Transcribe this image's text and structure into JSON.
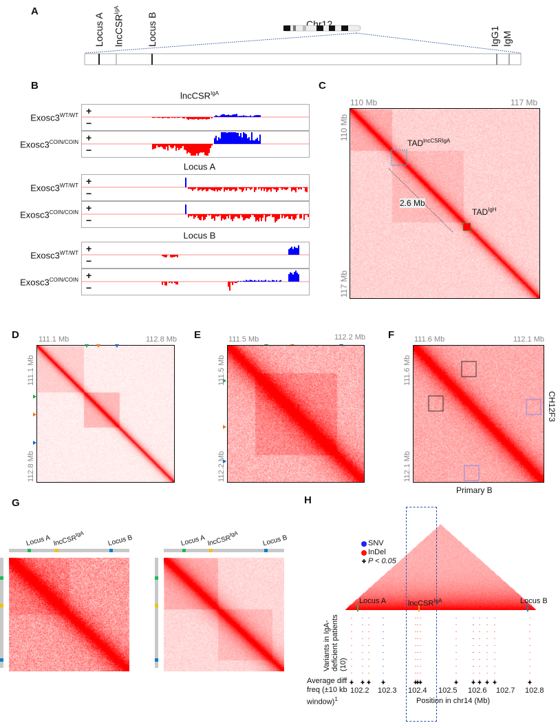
{
  "panels": {
    "A": "A",
    "B": "B",
    "C": "C",
    "D": "D",
    "E": "E",
    "F": "F",
    "G": "G",
    "H": "H"
  },
  "panel_a": {
    "chromosome": "Chr12",
    "loci": [
      {
        "name": "Locus A"
      },
      {
        "name": "lncCSR",
        "sup": "IgA"
      },
      {
        "name": "Locus B"
      },
      {
        "name": "IgG1"
      },
      {
        "name": "IgM"
      }
    ]
  },
  "panel_b": {
    "plus": "+",
    "minus": "−",
    "groups": [
      {
        "title": "lncCSR",
        "title_sup": "IgA"
      },
      {
        "title": "Locus A",
        "title_sup": ""
      },
      {
        "title": "Locus B",
        "title_sup": ""
      }
    ],
    "rows": [
      {
        "label": "Exosc3",
        "sup": "WT/WT"
      },
      {
        "label": "Exosc3",
        "sup": "COIN/COIN"
      }
    ],
    "colors": {
      "plus": "#0000ff",
      "minus": "#ff0000"
    }
  },
  "panel_c": {
    "x_start": "110 Mb",
    "x_end": "117 Mb",
    "y_start": "110 Mb",
    "y_end": "117 Mb",
    "tad1": "TAD",
    "tad1_sup": "lncCSRIgA",
    "tad2": "TAD",
    "tad2_sup": "IgH",
    "distance": "2.6 Mb"
  },
  "panel_d": {
    "x_start": "111.1 Mb",
    "x_end": "112.8 Mb",
    "y_start": "111.1 Mb",
    "y_end": "112.8 Mb"
  },
  "panel_e": {
    "x_start": "111.5 Mb",
    "x_end": "112.2 Mb",
    "y_start": "111.5 Mb",
    "y_end": "112.2 Mb"
  },
  "panel_f": {
    "x_start": "111.6 Mb",
    "x_end": "112.1 Mb",
    "y_start": "111.6 Mb",
    "y_end": "112.1 Mb",
    "bottom_label": "Primary B",
    "right_label": "CH12F3"
  },
  "panel_g": {
    "labels": [
      {
        "name": "Locus A"
      },
      {
        "name": "lncCSR",
        "sup": "IgA"
      },
      {
        "name": "Locus B"
      }
    ],
    "marker_colors": [
      "#1db954",
      "#f5c000",
      "#0a7fd0"
    ]
  },
  "panel_h": {
    "legend": [
      {
        "label": "SNV",
        "color": "#2020ff"
      },
      {
        "label": "InDel",
        "color": "#ff1010"
      },
      {
        "label": "P < 0.05"
      }
    ],
    "loci": [
      {
        "name": "Locus A"
      },
      {
        "name": "lncCSR",
        "sup": "IgA"
      },
      {
        "name": "Locus B"
      }
    ],
    "ylabel": "Variants in IgA-deficient patients (10)",
    "row_label": "Average diff freq (±10 kb window)",
    "row_sup": "1",
    "ticks": [
      "102.2",
      "102.3",
      "102.4",
      "102.5",
      "102.6",
      "102.7",
      "102.8"
    ],
    "xlabel": "Position in chr14 (Mb)"
  }
}
